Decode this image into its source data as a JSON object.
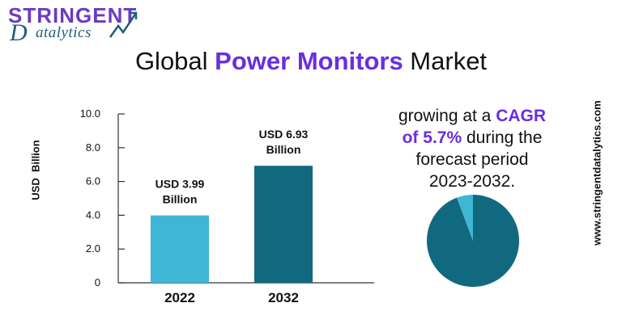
{
  "logo": {
    "line1": "STRINGENT",
    "letter_d": "D",
    "line2": "atalytics"
  },
  "title": {
    "pre": "Global ",
    "accent": "Power Monitors",
    "post": " Market"
  },
  "chart_data": {
    "type": "bar",
    "categories": [
      "2022",
      "2032"
    ],
    "values": [
      3.99,
      6.93
    ],
    "value_labels": [
      [
        "USD 3.99",
        "Billion"
      ],
      [
        "USD 6.93",
        "Billion"
      ]
    ],
    "ylabel": "USD  Billion",
    "ylim": [
      0,
      10.0
    ],
    "yticks": [
      "0",
      "2.0",
      "4.0",
      "6.0",
      "8.0",
      "10.0"
    ],
    "ytick_values": [
      0,
      2,
      4,
      6,
      8,
      10
    ],
    "colors": [
      "#3fb6d6",
      "#11697f"
    ]
  },
  "cagr": {
    "line1_pre": "growing at a ",
    "line1_hl": "CAGR",
    "line2_hl": "of 5.7%",
    "line2_post": " during the",
    "line3": "forecast period",
    "line4": "2023-2032."
  },
  "pie": {
    "type": "pie",
    "slices": [
      0.943,
      0.057
    ],
    "colors": [
      "#11697f",
      "#3fb6d6"
    ]
  },
  "website": "www.stringentdatalytics.com"
}
